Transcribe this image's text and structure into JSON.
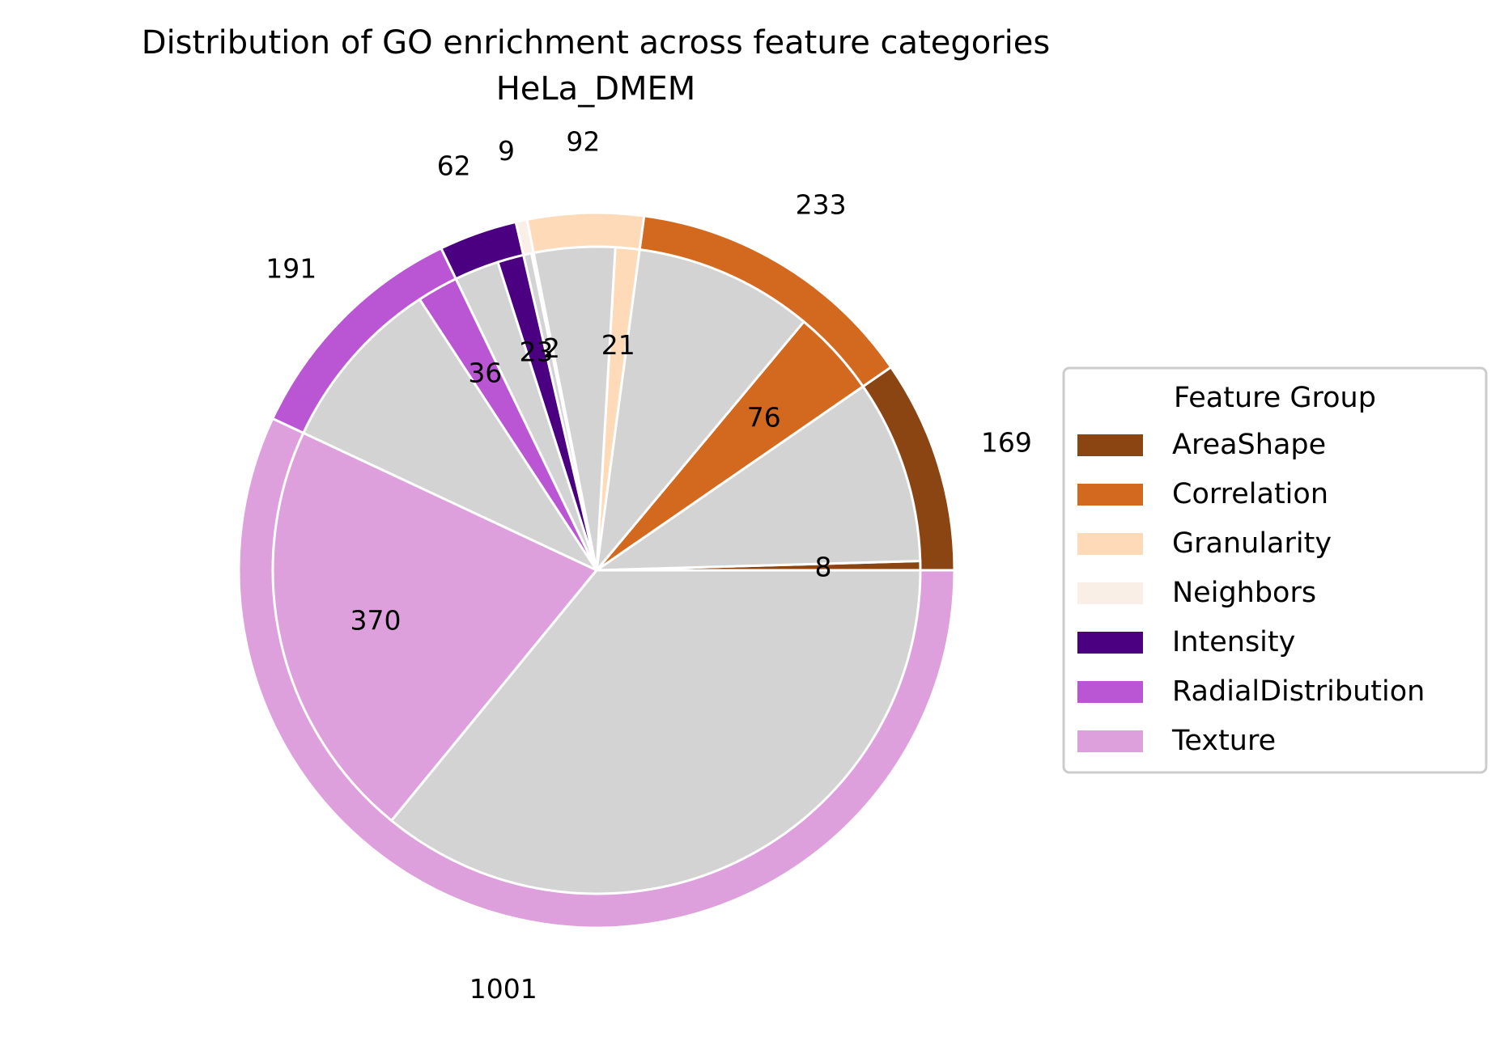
{
  "chart_data": {
    "type": "pie",
    "subtype": "nested-donut",
    "title": "Distribution of GO enrichment across feature categories",
    "subtitle": "HeLa_DMEM",
    "legend": {
      "title": "Feature Group",
      "placement": "right"
    },
    "groups": [
      {
        "name": "AreaShape",
        "total": 169,
        "enriched": 8,
        "color": "#8B4513"
      },
      {
        "name": "Correlation",
        "total": 233,
        "enriched": 76,
        "color": "#D2691E"
      },
      {
        "name": "Granularity",
        "total": 92,
        "enriched": 21,
        "color": "#FFDAB9"
      },
      {
        "name": "Neighbors",
        "total": 9,
        "enriched": 2,
        "color": "#FAEFE6"
      },
      {
        "name": "Intensity",
        "total": 62,
        "enriched": 23,
        "color": "#4B0082"
      },
      {
        "name": "RadialDistribution",
        "total": 191,
        "enriched": 36,
        "color": "#BA55D3"
      },
      {
        "name": "Texture",
        "total": 1001,
        "enriched": 370,
        "color": "#DDA0DD"
      }
    ],
    "remainder_color": "#D3D3D3",
    "start_angle_deg": 0,
    "direction": "counterclockwise"
  }
}
